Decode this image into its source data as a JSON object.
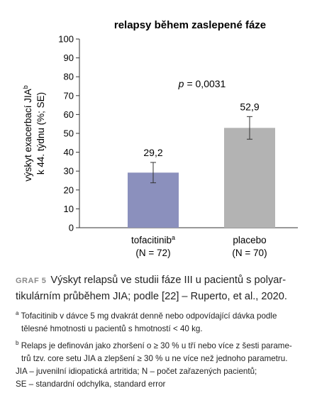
{
  "chart_data": {
    "type": "bar",
    "title": "relapsy během zaslepené fáze",
    "ylabel": [
      "výskyt exacerbací JIA",
      "k 44. týdnu (%; SE)"
    ],
    "ylabel_superscript": "b",
    "categories": [
      "tofacitinib",
      "placebo"
    ],
    "category_superscripts": [
      "a",
      null
    ],
    "category_notes": [
      "(N = 72)",
      "(N = 70)"
    ],
    "values": [
      29.2,
      52.9
    ],
    "value_labels": [
      "29,2",
      "52,9"
    ],
    "errors": [
      5.4,
      6.0
    ],
    "colors": [
      "#8b90bd",
      "#b3b3b3"
    ],
    "annotation": [
      "p",
      "= 0,0031"
    ],
    "ylim": [
      0,
      100
    ],
    "yticks": [
      0,
      10,
      20,
      30,
      40,
      50,
      60,
      70,
      80,
      90,
      100
    ]
  },
  "caption": {
    "label": "GRAF 5",
    "lines": [
      "Výskyt relapsů ve studii fáze III u pacientů s polyar-",
      "tikulárním průběhem JIA; podle [22] – Ruperto, et al., 2020."
    ]
  },
  "footnotes": [
    {
      "mark": "a",
      "lines": [
        "Tofacitinib v dávce 5 mg dvakrát denně nebo odpovídající dávka podle",
        "tělesné hmotnosti u pacientů s hmotností < 40 kg."
      ]
    },
    {
      "mark": "b",
      "lines": [
        "Relaps je definován jako zhoršení o ≥ 30 % u tří nebo více z šesti parame-",
        "trů tzv. core setu JIA a zlepšení ≥ 30 % u ne více než jednoho parametru."
      ]
    }
  ],
  "abbreviations": [
    "JIA – juvenilní idiopatická artritida; N – počet zařazených pacientů;",
    "SE – standardní odchylka, standard error"
  ]
}
